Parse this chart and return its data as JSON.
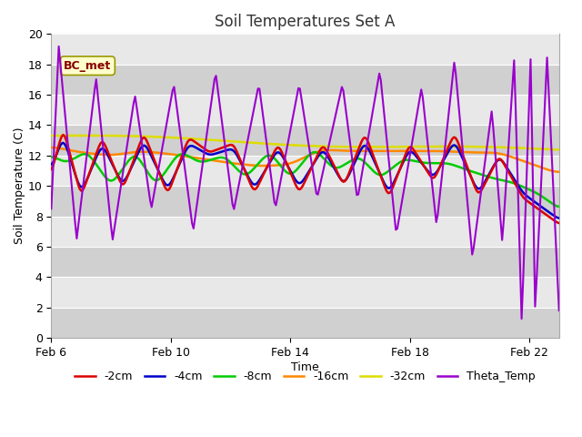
{
  "title": "Soil Temperatures Set A",
  "xlabel": "Time",
  "ylabel": "Soil Temperature (C)",
  "ylim": [
    0,
    20
  ],
  "xlim": [
    0,
    17
  ],
  "xtick_positions": [
    0,
    4,
    8,
    12,
    16
  ],
  "xtick_labels": [
    "Feb 6",
    "Feb 10",
    "Feb 14",
    "Feb 18",
    "Feb 22"
  ],
  "ytick_positions": [
    0,
    2,
    4,
    6,
    8,
    10,
    12,
    14,
    16,
    18,
    20
  ],
  "annotation": "BC_met",
  "colors": {
    "-2cm": "#dd0000",
    "-4cm": "#0000cc",
    "-8cm": "#00cc00",
    "-16cm": "#ff8800",
    "-32cm": "#dddd00",
    "Theta_Temp": "#9900cc"
  },
  "legend_labels": [
    "-2cm",
    "-4cm",
    "-8cm",
    "-16cm",
    "-32cm",
    "Theta_Temp"
  ],
  "bg_color": "#ffffff",
  "plot_bg_color": "#e8e8e8",
  "band_color": "#d0d0d0",
  "n_points": 340
}
